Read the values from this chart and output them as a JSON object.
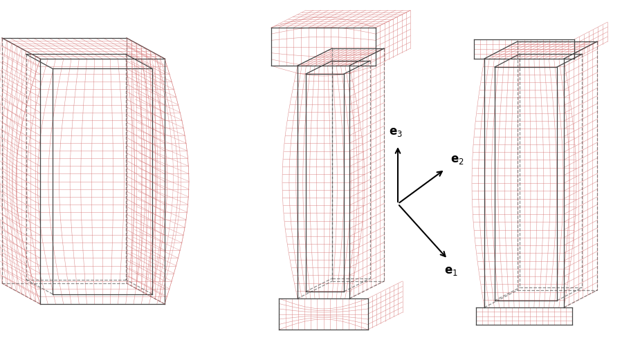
{
  "bg_color": "#ffffff",
  "mesh_color_red": "#d47070",
  "mesh_color_light": "#f0a0a0",
  "dark_edge_color": "#444444",
  "fig_width": 9.25,
  "fig_height": 4.95,
  "dpi": 100,
  "label_fontsize": 12
}
